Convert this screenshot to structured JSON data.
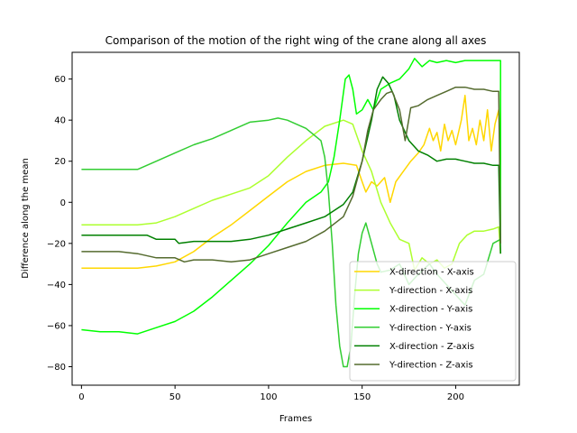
{
  "chart_data": {
    "type": "line",
    "title": "Comparison of the motion of the right wing of the crane along all axes",
    "xlabel": "Frames",
    "ylabel": "Difference along the mean",
    "xlim": [
      -5,
      234
    ],
    "ylim": [
      -89,
      73
    ],
    "xticks": [
      0,
      50,
      100,
      150,
      200
    ],
    "yticks": [
      -80,
      -60,
      -40,
      -20,
      0,
      20,
      40,
      60
    ],
    "grid": false,
    "legend": "bottom-right",
    "series": [
      {
        "name": "X-direction - X-axis",
        "color": "#ffd700",
        "points": [
          [
            0,
            -32
          ],
          [
            10,
            -32
          ],
          [
            20,
            -32
          ],
          [
            30,
            -32
          ],
          [
            40,
            -31
          ],
          [
            50,
            -29
          ],
          [
            60,
            -24
          ],
          [
            70,
            -17
          ],
          [
            80,
            -11
          ],
          [
            90,
            -4
          ],
          [
            100,
            3
          ],
          [
            110,
            10
          ],
          [
            120,
            15
          ],
          [
            130,
            18
          ],
          [
            140,
            19
          ],
          [
            147,
            18
          ],
          [
            150,
            10
          ],
          [
            152,
            5
          ],
          [
            155,
            10
          ],
          [
            158,
            8
          ],
          [
            162,
            12
          ],
          [
            165,
            0
          ],
          [
            168,
            10
          ],
          [
            172,
            15
          ],
          [
            176,
            20
          ],
          [
            180,
            24
          ],
          [
            183,
            28
          ],
          [
            186,
            36
          ],
          [
            188,
            30
          ],
          [
            190,
            34
          ],
          [
            192,
            25
          ],
          [
            194,
            38
          ],
          [
            196,
            30
          ],
          [
            198,
            35
          ],
          [
            200,
            28
          ],
          [
            203,
            40
          ],
          [
            205,
            52
          ],
          [
            207,
            30
          ],
          [
            209,
            36
          ],
          [
            211,
            28
          ],
          [
            213,
            40
          ],
          [
            215,
            30
          ],
          [
            217,
            45
          ],
          [
            219,
            25
          ],
          [
            221,
            38
          ],
          [
            223,
            45
          ],
          [
            224,
            20
          ]
        ]
      },
      {
        "name": "Y-direction - X-axis",
        "color": "#adff2f",
        "points": [
          [
            0,
            -11
          ],
          [
            10,
            -11
          ],
          [
            20,
            -11
          ],
          [
            30,
            -11
          ],
          [
            40,
            -10
          ],
          [
            50,
            -7
          ],
          [
            60,
            -3
          ],
          [
            70,
            1
          ],
          [
            80,
            4
          ],
          [
            90,
            7
          ],
          [
            100,
            13
          ],
          [
            110,
            22
          ],
          [
            120,
            30
          ],
          [
            130,
            37
          ],
          [
            140,
            40
          ],
          [
            145,
            38
          ],
          [
            150,
            25
          ],
          [
            155,
            15
          ],
          [
            160,
            0
          ],
          [
            165,
            -10
          ],
          [
            170,
            -18
          ],
          [
            175,
            -20
          ],
          [
            178,
            -33
          ],
          [
            182,
            -27
          ],
          [
            186,
            -30
          ],
          [
            190,
            -28
          ],
          [
            194,
            -32
          ],
          [
            198,
            -30
          ],
          [
            202,
            -20
          ],
          [
            206,
            -16
          ],
          [
            210,
            -14
          ],
          [
            215,
            -14
          ],
          [
            220,
            -13
          ],
          [
            223,
            -12
          ],
          [
            224,
            -25
          ]
        ]
      },
      {
        "name": "X-direction - Y-axis",
        "color": "#00ff00",
        "points": [
          [
            0,
            -62
          ],
          [
            10,
            -63
          ],
          [
            20,
            -63
          ],
          [
            30,
            -64
          ],
          [
            40,
            -61
          ],
          [
            50,
            -58
          ],
          [
            60,
            -53
          ],
          [
            70,
            -46
          ],
          [
            80,
            -38
          ],
          [
            90,
            -30
          ],
          [
            100,
            -21
          ],
          [
            110,
            -10
          ],
          [
            120,
            0
          ],
          [
            128,
            5
          ],
          [
            132,
            10
          ],
          [
            135,
            22
          ],
          [
            138,
            40
          ],
          [
            141,
            60
          ],
          [
            143,
            62
          ],
          [
            145,
            55
          ],
          [
            147,
            43
          ],
          [
            150,
            45
          ],
          [
            153,
            50
          ],
          [
            156,
            45
          ],
          [
            160,
            55
          ],
          [
            165,
            58
          ],
          [
            170,
            60
          ],
          [
            175,
            65
          ],
          [
            178,
            70
          ],
          [
            182,
            66
          ],
          [
            186,
            69
          ],
          [
            190,
            68
          ],
          [
            195,
            69
          ],
          [
            200,
            68
          ],
          [
            205,
            69
          ],
          [
            210,
            69
          ],
          [
            215,
            69
          ],
          [
            220,
            69
          ],
          [
            224,
            69
          ],
          [
            224,
            -20
          ]
        ]
      },
      {
        "name": "Y-direction - Y-axis",
        "color": "#32cd32",
        "points": [
          [
            0,
            16
          ],
          [
            10,
            16
          ],
          [
            20,
            16
          ],
          [
            30,
            16
          ],
          [
            40,
            20
          ],
          [
            50,
            24
          ],
          [
            60,
            28
          ],
          [
            70,
            31
          ],
          [
            80,
            35
          ],
          [
            90,
            39
          ],
          [
            100,
            40
          ],
          [
            105,
            41
          ],
          [
            110,
            40
          ],
          [
            120,
            36
          ],
          [
            128,
            30
          ],
          [
            130,
            22
          ],
          [
            132,
            5
          ],
          [
            134,
            -20
          ],
          [
            136,
            -50
          ],
          [
            138,
            -70
          ],
          [
            140,
            -80
          ],
          [
            142,
            -80
          ],
          [
            144,
            -70
          ],
          [
            146,
            -45
          ],
          [
            148,
            -25
          ],
          [
            150,
            -15
          ],
          [
            152,
            -10
          ],
          [
            155,
            -20
          ],
          [
            158,
            -30
          ],
          [
            160,
            -34
          ],
          [
            165,
            -33
          ],
          [
            170,
            -30
          ],
          [
            175,
            -40
          ],
          [
            180,
            -35
          ],
          [
            186,
            -30
          ],
          [
            190,
            -35
          ],
          [
            195,
            -40
          ],
          [
            200,
            -45
          ],
          [
            205,
            -50
          ],
          [
            210,
            -38
          ],
          [
            215,
            -35
          ],
          [
            220,
            -20
          ],
          [
            224,
            -18
          ]
        ]
      },
      {
        "name": "X-direction - Z-axis",
        "color": "#008000",
        "points": [
          [
            0,
            -16
          ],
          [
            10,
            -16
          ],
          [
            20,
            -16
          ],
          [
            30,
            -16
          ],
          [
            35,
            -16
          ],
          [
            40,
            -18
          ],
          [
            50,
            -18
          ],
          [
            52,
            -20
          ],
          [
            60,
            -19
          ],
          [
            70,
            -19
          ],
          [
            80,
            -19
          ],
          [
            90,
            -18
          ],
          [
            100,
            -16
          ],
          [
            110,
            -13
          ],
          [
            120,
            -10
          ],
          [
            130,
            -7
          ],
          [
            140,
            -1
          ],
          [
            145,
            5
          ],
          [
            150,
            20
          ],
          [
            155,
            40
          ],
          [
            158,
            55
          ],
          [
            161,
            61
          ],
          [
            164,
            58
          ],
          [
            167,
            52
          ],
          [
            170,
            40
          ],
          [
            175,
            30
          ],
          [
            180,
            25
          ],
          [
            185,
            23
          ],
          [
            190,
            20
          ],
          [
            195,
            21
          ],
          [
            200,
            21
          ],
          [
            205,
            20
          ],
          [
            210,
            19
          ],
          [
            215,
            19
          ],
          [
            220,
            18
          ],
          [
            223,
            18
          ],
          [
            224,
            -25
          ]
        ]
      },
      {
        "name": "Y-direction - Z-axis",
        "color": "#556b2f",
        "points": [
          [
            0,
            -24
          ],
          [
            10,
            -24
          ],
          [
            20,
            -24
          ],
          [
            30,
            -25
          ],
          [
            40,
            -27
          ],
          [
            50,
            -27
          ],
          [
            55,
            -29
          ],
          [
            60,
            -28
          ],
          [
            70,
            -28
          ],
          [
            80,
            -29
          ],
          [
            90,
            -28
          ],
          [
            100,
            -25
          ],
          [
            110,
            -22
          ],
          [
            120,
            -19
          ],
          [
            130,
            -14
          ],
          [
            140,
            -7
          ],
          [
            145,
            3
          ],
          [
            150,
            20
          ],
          [
            153,
            35
          ],
          [
            156,
            45
          ],
          [
            160,
            50
          ],
          [
            163,
            53
          ],
          [
            166,
            54
          ],
          [
            170,
            45
          ],
          [
            173,
            30
          ],
          [
            176,
            46
          ],
          [
            180,
            47
          ],
          [
            185,
            50
          ],
          [
            190,
            52
          ],
          [
            195,
            54
          ],
          [
            200,
            56
          ],
          [
            205,
            56
          ],
          [
            210,
            55
          ],
          [
            215,
            55
          ],
          [
            220,
            54
          ],
          [
            223,
            54
          ],
          [
            224,
            -20
          ]
        ]
      }
    ]
  }
}
